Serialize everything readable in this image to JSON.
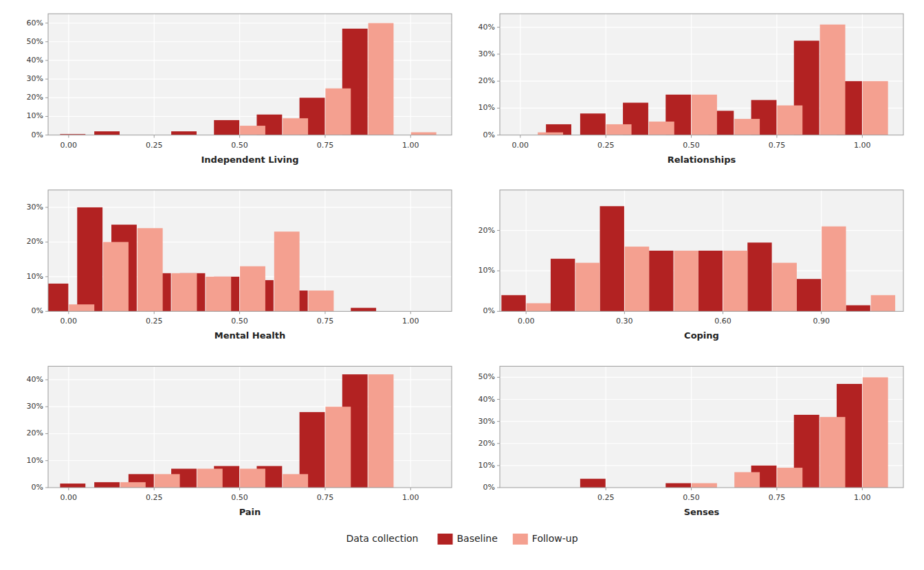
{
  "chart_data": [
    {
      "type": "bar",
      "xlabel": "Independent Living",
      "grid": true,
      "legend": "bottom",
      "legend_title": "Data collection",
      "xlim": [
        -0.06,
        1.12
      ],
      "xticks": [
        {
          "value": 0.0,
          "label": "0.00"
        },
        0.25,
        {
          "value": 0.5,
          "label": "0.50"
        },
        0.75,
        {
          "value": 1.0,
          "label": "1.00"
        }
      ],
      "ylim": [
        0,
        0.65
      ],
      "yticks": [
        {
          "value": 0,
          "label": "0%"
        },
        {
          "value": 0.1,
          "label": "10%"
        },
        {
          "value": 0.2,
          "label": "20%"
        },
        {
          "value": 0.3,
          "label": "30%"
        },
        {
          "value": 0.4,
          "label": "40%"
        },
        {
          "value": 0.5,
          "label": "50%"
        },
        {
          "value": 0.6,
          "label": "60%"
        }
      ],
      "x": [
        0.05,
        0.15,
        0.25,
        0.375,
        0.5,
        0.625,
        0.75,
        0.875,
        1.0
      ],
      "series": [
        {
          "name": "Baseline",
          "color": "#b22222",
          "values": [
            0.005,
            0.02,
            0.0,
            0.02,
            0.08,
            0.11,
            0.2,
            0.57,
            0.0
          ]
        },
        {
          "name": "Follow-up",
          "color": "#f4a090",
          "values": [
            0.0,
            0.0,
            0.0,
            0.0,
            0.05,
            0.09,
            0.25,
            0.6,
            0.015
          ]
        }
      ]
    },
    {
      "type": "bar",
      "xlabel": "Relationships",
      "grid": true,
      "xlim": [
        -0.06,
        1.12
      ],
      "xticks": [
        {
          "value": 0.0,
          "label": "0.00"
        },
        0.25,
        {
          "value": 0.5,
          "label": "0.50"
        },
        0.75,
        {
          "value": 1.0,
          "label": "1.00"
        }
      ],
      "ylim": [
        0,
        0.45
      ],
      "yticks": [
        {
          "value": 0,
          "label": "0%"
        },
        {
          "value": 0.1,
          "label": "10%"
        },
        {
          "value": 0.2,
          "label": "20%"
        },
        {
          "value": 0.3,
          "label": "30%"
        },
        {
          "value": 0.4,
          "label": "40%"
        }
      ],
      "x": [
        0.05,
        0.15,
        0.25,
        0.375,
        0.5,
        0.625,
        0.75,
        0.875,
        1.0
      ],
      "series": [
        {
          "name": "Baseline",
          "color": "#b22222",
          "values": [
            0.0,
            0.04,
            0.08,
            0.12,
            0.15,
            0.09,
            0.13,
            0.35,
            0.2
          ]
        },
        {
          "name": "Follow-up",
          "color": "#f4a090",
          "values": [
            0.01,
            0.0,
            0.04,
            0.05,
            0.15,
            0.06,
            0.11,
            0.41,
            0.2
          ]
        }
      ]
    },
    {
      "type": "bar",
      "xlabel": "Mental Health",
      "grid": true,
      "xlim": [
        -0.06,
        1.12
      ],
      "xticks": [
        {
          "value": 0.0,
          "label": "0.00"
        },
        0.25,
        {
          "value": 0.5,
          "label": "0.50"
        },
        0.75,
        {
          "value": 1.0,
          "label": "1.00"
        }
      ],
      "ylim": [
        0,
        0.35
      ],
      "yticks": [
        {
          "value": 0,
          "label": "0%"
        },
        {
          "value": 0.1,
          "label": "10%"
        },
        {
          "value": 0.2,
          "label": "20%"
        },
        {
          "value": 0.3,
          "label": "30%"
        }
      ],
      "x": [
        0.0,
        0.1,
        0.2,
        0.3,
        0.4,
        0.5,
        0.6,
        0.7,
        0.8,
        0.9,
        1.0
      ],
      "series": [
        {
          "name": "Baseline",
          "color": "#b22222",
          "values": [
            0.08,
            0.3,
            0.25,
            0.11,
            0.11,
            0.1,
            0.09,
            0.06,
            0.0,
            0.01,
            0.0
          ]
        },
        {
          "name": "Follow-up",
          "color": "#f4a090",
          "values": [
            0.02,
            0.2,
            0.24,
            0.11,
            0.1,
            0.13,
            0.23,
            0.06,
            0.0,
            0.0,
            0.0
          ]
        }
      ]
    },
    {
      "type": "bar",
      "xlabel": "Coping",
      "grid": true,
      "xlim": [
        -0.08,
        1.15
      ],
      "xticks": [
        {
          "value": 0.0,
          "label": "0.00"
        },
        {
          "value": 0.3,
          "label": "0.30"
        },
        {
          "value": 0.6,
          "label": "0.60"
        },
        {
          "value": 0.9,
          "label": "0.90"
        }
      ],
      "ylim": [
        0,
        0.3
      ],
      "yticks": [
        {
          "value": 0,
          "label": "0%"
        },
        {
          "value": 0.1,
          "label": "10%"
        },
        {
          "value": 0.2,
          "label": "20%"
        }
      ],
      "x": [
        0.0,
        0.15,
        0.3,
        0.45,
        0.6,
        0.75,
        0.9,
        1.05
      ],
      "series": [
        {
          "name": "Baseline",
          "color": "#b22222",
          "values": [
            0.04,
            0.13,
            0.26,
            0.15,
            0.15,
            0.17,
            0.08,
            0.015
          ]
        },
        {
          "name": "Follow-up",
          "color": "#f4a090",
          "values": [
            0.02,
            0.12,
            0.16,
            0.15,
            0.15,
            0.12,
            0.21,
            0.04
          ]
        }
      ]
    },
    {
      "type": "bar",
      "xlabel": "Pain",
      "grid": true,
      "xlim": [
        -0.06,
        1.12
      ],
      "xticks": [
        {
          "value": 0.0,
          "label": "0.00"
        },
        0.25,
        {
          "value": 0.5,
          "label": "0.50"
        },
        0.75,
        {
          "value": 1.0,
          "label": "1.00"
        }
      ],
      "ylim": [
        0,
        0.45
      ],
      "yticks": [
        {
          "value": 0,
          "label": "0%"
        },
        {
          "value": 0.1,
          "label": "10%"
        },
        {
          "value": 0.2,
          "label": "20%"
        },
        {
          "value": 0.3,
          "label": "30%"
        },
        {
          "value": 0.4,
          "label": "40%"
        }
      ],
      "x": [
        0.05,
        0.15,
        0.25,
        0.375,
        0.5,
        0.625,
        0.75,
        0.875,
        1.0
      ],
      "series": [
        {
          "name": "Baseline",
          "color": "#b22222",
          "values": [
            0.015,
            0.02,
            0.05,
            0.07,
            0.08,
            0.08,
            0.28,
            0.42,
            0.0
          ]
        },
        {
          "name": "Follow-up",
          "color": "#f4a090",
          "values": [
            0.0,
            0.02,
            0.05,
            0.07,
            0.07,
            0.05,
            0.3,
            0.42,
            0.0
          ]
        }
      ]
    },
    {
      "type": "bar",
      "xlabel": "Senses",
      "grid": true,
      "xlim": [
        -0.06,
        1.12
      ],
      "xticks": [
        0.25,
        {
          "value": 0.5,
          "label": "0.50"
        },
        0.75,
        {
          "value": 1.0,
          "label": "1.00"
        }
      ],
      "ylim": [
        0,
        0.55
      ],
      "yticks": [
        {
          "value": 0,
          "label": "0%"
        },
        {
          "value": 0.1,
          "label": "10%"
        },
        {
          "value": 0.2,
          "label": "20%"
        },
        {
          "value": 0.3,
          "label": "30%"
        },
        {
          "value": 0.4,
          "label": "40%"
        },
        {
          "value": 0.5,
          "label": "50%"
        }
      ],
      "x": [
        0.05,
        0.25,
        0.375,
        0.5,
        0.625,
        0.75,
        0.875,
        1.0
      ],
      "series": [
        {
          "name": "Baseline",
          "color": "#b22222",
          "values": [
            0.0,
            0.04,
            0.0,
            0.02,
            0.0,
            0.1,
            0.33,
            0.47
          ]
        },
        {
          "name": "Follow-up",
          "color": "#f4a090",
          "values": [
            0.0,
            0.0,
            0.0,
            0.02,
            0.07,
            0.09,
            0.32,
            0.5
          ]
        }
      ]
    }
  ]
}
